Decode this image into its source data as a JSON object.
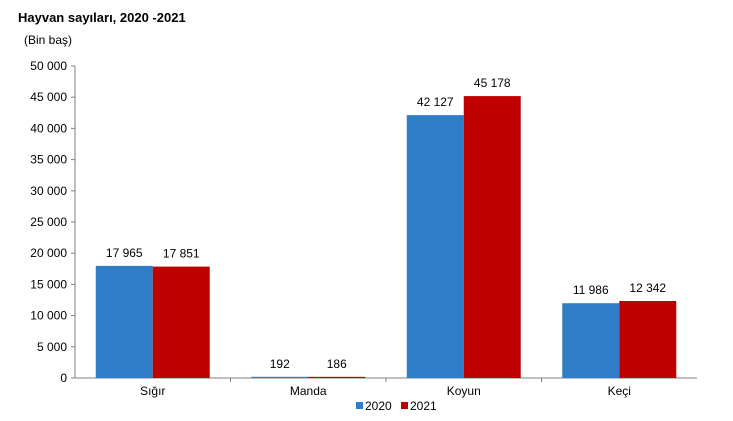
{
  "chart_data": {
    "type": "bar",
    "title": "Hayvan sayıları, 2020 -2021",
    "unit_label": "(Bin baş)",
    "categories": [
      "Sığır",
      "Manda",
      "Koyun",
      "Keçi"
    ],
    "series": [
      {
        "name": "2020",
        "values": [
          17965,
          192,
          42127,
          11986
        ],
        "labels": [
          "17 965",
          "192",
          "42 127",
          "11 986"
        ],
        "color": "#2e7dc6"
      },
      {
        "name": "2021",
        "values": [
          17851,
          186,
          45178,
          12342
        ],
        "labels": [
          "17 851",
          "186",
          "45 178",
          "12 342"
        ],
        "color": "#c00000"
      }
    ],
    "ylim": [
      0,
      50000
    ],
    "yticks": [
      0,
      5000,
      10000,
      15000,
      20000,
      25000,
      30000,
      35000,
      40000,
      45000,
      50000
    ],
    "ytick_labels": [
      "0",
      "5 000",
      "10 000",
      "15 000",
      "20 000",
      "25 000",
      "30 000",
      "35 000",
      "40 000",
      "45 000",
      "50 000"
    ],
    "grid": false,
    "legend_position": "bottom"
  }
}
